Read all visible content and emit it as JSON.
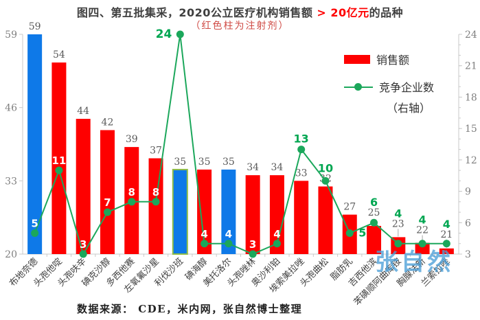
{
  "header": {
    "title_prefix": "图四、第五批集采，2020公立医疗机构销售额 ",
    "title_highlight": "> 20亿元",
    "title_suffix": "的品种",
    "subtitle": "（红色柱为注射剂）"
  },
  "legend": {
    "position": "upper-right",
    "sales_label": "销售额",
    "competitors_label": "竞争企业数",
    "competitors_label2": "（右轴）"
  },
  "watermark": "张自然",
  "source_note": "数据来源： CDE，米内网，张自然博士整理",
  "colors": {
    "red": "#FE0000",
    "blue": "#0E79E8",
    "bar_outline_green": "#8FBC45",
    "line_green": "#1BA75B",
    "label_green": "#00A651",
    "label_white": "#FFFFFF",
    "bar_value_gray": "#595959",
    "axis_gray": "#C9C9C9",
    "tick_label_gray": "#7F7F7F",
    "leader_gray": "#A6A6A6",
    "x_label_dark": "#404040",
    "title_dark": "#3F3F3F",
    "subtitle_red": "#CF4A44",
    "watermark_blue": "#4D9FD8"
  },
  "chart_data": {
    "type": "bar+line-combo",
    "title": "图四、第五批集采，2020公立医疗机构销售额 > 20亿元的品种",
    "subtitle": "（红色柱为注射剂）",
    "note": "红色柱为注射剂",
    "categories": [
      "布地奈德",
      "头孢他啶",
      "头孢呋辛",
      "碘克沙醇",
      "多西他赛",
      "左氧氟沙星",
      "利伐沙班",
      "碘海醇",
      "美托洛尔",
      "头孢唑林",
      "奥沙利铂",
      "埃索美拉唑",
      "头孢曲松",
      "脂肪乳",
      "吉西他滨",
      "苯磺顺阿曲库铵",
      "胸腺法新",
      "兰索拉唑"
    ],
    "series": [
      {
        "name": "销售额",
        "type": "bar",
        "axis": "left",
        "values": [
          59,
          54,
          44,
          42,
          39,
          37,
          35,
          35,
          35,
          34,
          34,
          33,
          32,
          27,
          25,
          23,
          22,
          21
        ]
      },
      {
        "name": "竞争企业数（右轴）",
        "type": "line",
        "axis": "right",
        "values": [
          5,
          11,
          3,
          7,
          8,
          8,
          24,
          4,
          4,
          3,
          4,
          13,
          10,
          5,
          6,
          4,
          4,
          4
        ]
      }
    ],
    "bar_colors": [
      "blue",
      "red",
      "red",
      "red",
      "red",
      "red",
      "blue-outline",
      "red",
      "blue",
      "red",
      "red",
      "red",
      "red",
      "red",
      "red",
      "red",
      "red",
      "red"
    ],
    "comp_label_styles": [
      "white",
      "white",
      "white",
      "white",
      "white",
      "white",
      "green-left",
      "white",
      "white",
      "white",
      "white",
      "green-above",
      "green-stack",
      "green-right",
      "green-stack",
      "green-stack",
      "green-stack",
      "green-stack"
    ],
    "sales_label_lift": [
      0,
      0,
      0,
      0,
      0,
      0,
      0,
      0,
      0,
      0,
      0,
      0,
      0,
      0,
      8,
      8,
      7,
      9
    ],
    "leader_line": [
      false,
      false,
      false,
      false,
      false,
      false,
      false,
      false,
      false,
      false,
      false,
      false,
      false,
      false,
      false,
      true,
      true,
      true
    ],
    "left_axis": {
      "min": 20,
      "max": 59,
      "ticks": [
        20,
        33,
        46,
        59
      ]
    },
    "right_axis": {
      "min": 3,
      "max": 24,
      "ticks": [
        3,
        6,
        9,
        12,
        15,
        18,
        21,
        24
      ],
      "minor_step": 1
    },
    "grid": false,
    "legend_position": "upper-right"
  }
}
